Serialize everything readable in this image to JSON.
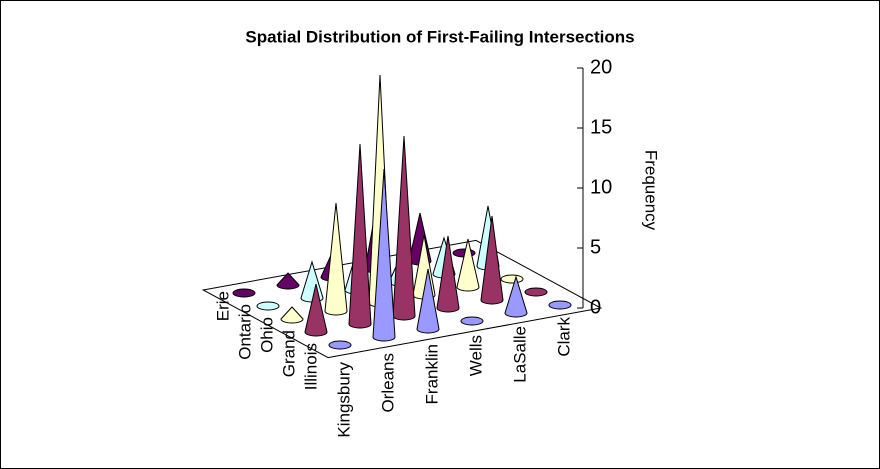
{
  "chart_data": {
    "type": "cone",
    "title": "Spatial Distribution of First-Failing Intersections",
    "y_label": "Frequency",
    "categories": [
      "Kingsbury",
      "Orleans",
      "Franklin",
      "Wells",
      "LaSalle",
      "Clark"
    ],
    "series": [
      {
        "name": "Illinois",
        "color": "#9999FF",
        "values": [
          0,
          14,
          5,
          0,
          3,
          0
        ]
      },
      {
        "name": "Grand",
        "color": "#993366",
        "values": [
          4,
          15,
          15,
          6,
          7,
          0
        ]
      },
      {
        "name": "Ohio",
        "color": "#FFFFCC",
        "values": [
          1,
          9,
          19,
          5,
          4,
          0
        ]
      },
      {
        "name": "Ontario",
        "color": "#CCFFFF",
        "values": [
          0,
          3,
          3,
          2,
          3,
          5
        ]
      },
      {
        "name": "Erie",
        "color": "#660066",
        "values": [
          0,
          1,
          2,
          5,
          4,
          0
        ]
      }
    ],
    "ylim": [
      0,
      20
    ],
    "yticks": [
      0,
      5,
      10,
      15,
      20
    ]
  }
}
